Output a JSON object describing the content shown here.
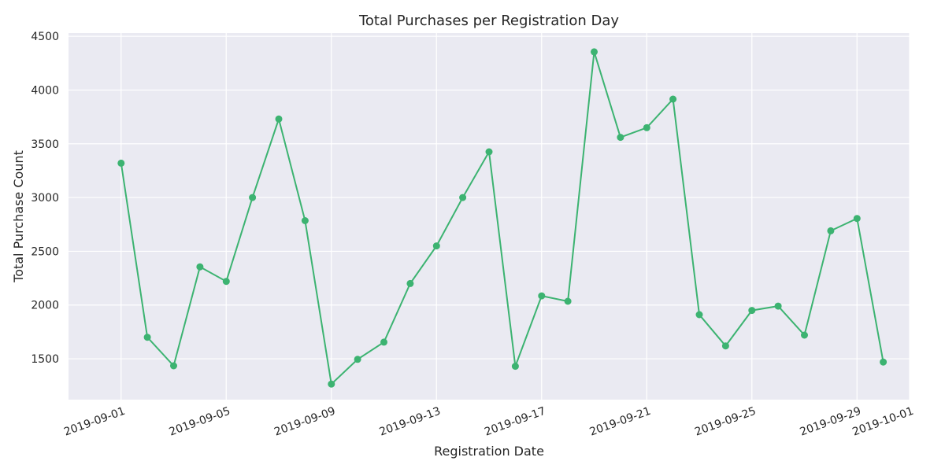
{
  "chart_data": {
    "type": "line",
    "title": "Total Purchases per Registration Day",
    "xlabel": "Registration Date",
    "ylabel": "Total Purchase Count",
    "x_ticks": [
      "2019-09-01",
      "2019-09-05",
      "2019-09-09",
      "2019-09-13",
      "2019-09-17",
      "2019-09-21",
      "2019-09-25",
      "2019-09-29",
      "2019-10-01"
    ],
    "y_ticks": [
      1500,
      2000,
      2500,
      3000,
      3500,
      4000,
      4500
    ],
    "xlim": [
      "2019-08-30",
      "2019-10-01"
    ],
    "ylim": [
      1120,
      4530
    ],
    "grid": true,
    "colors": {
      "line": "#3cb371",
      "background": "#eaeaf2",
      "grid": "#ffffff"
    },
    "series": [
      {
        "x": [
          "2019-09-01",
          "2019-09-02",
          "2019-09-03",
          "2019-09-04",
          "2019-09-05",
          "2019-09-06",
          "2019-09-07",
          "2019-09-08",
          "2019-09-09",
          "2019-09-10",
          "2019-09-11",
          "2019-09-12",
          "2019-09-13",
          "2019-09-14",
          "2019-09-15",
          "2019-09-16",
          "2019-09-17",
          "2019-09-18",
          "2019-09-19",
          "2019-09-20",
          "2019-09-21",
          "2019-09-22",
          "2019-09-23",
          "2019-09-24",
          "2019-09-25",
          "2019-09-26",
          "2019-09-27",
          "2019-09-28",
          "2019-09-29",
          "2019-09-30"
        ],
        "values": [
          3320,
          1700,
          1435,
          2355,
          2220,
          3000,
          3730,
          2785,
          1265,
          1495,
          1655,
          2200,
          2550,
          3000,
          3425,
          1430,
          2085,
          2035,
          4355,
          3560,
          3650,
          3915,
          1910,
          1620,
          1950,
          1990,
          1720,
          2690,
          2805,
          1470
        ]
      }
    ]
  }
}
